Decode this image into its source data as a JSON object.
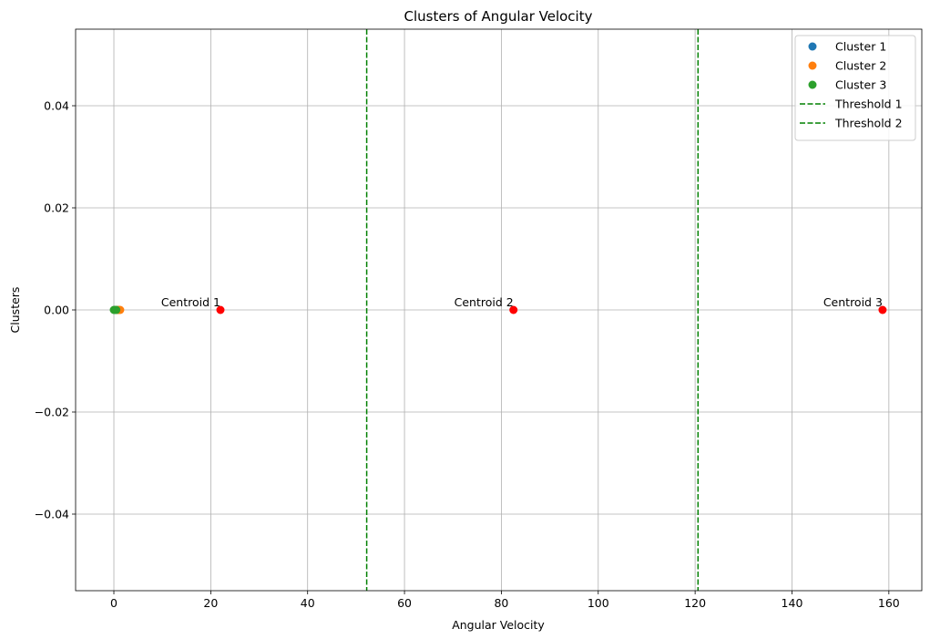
{
  "chart_data": {
    "type": "scatter",
    "title": "Clusters of Angular Velocity",
    "xlabel": "Angular Velocity",
    "ylabel": "Clusters",
    "xlim": [
      -7.9,
      166.8
    ],
    "ylim": [
      -0.055,
      0.055
    ],
    "xticks": [
      0,
      20,
      40,
      60,
      80,
      100,
      120,
      140,
      160
    ],
    "xtick_labels": [
      "0",
      "20",
      "40",
      "60",
      "80",
      "100",
      "120",
      "140",
      "160"
    ],
    "yticks": [
      -0.04,
      -0.02,
      0.0,
      0.02,
      0.04
    ],
    "ytick_labels": [
      "−0.04",
      "−0.02",
      "0.00",
      "0.02",
      "0.04"
    ],
    "grid": true,
    "legend_position": "top-right",
    "series": [
      {
        "name": "Cluster 1",
        "color": "#1f77b4",
        "x": [
          0.2,
          0.5,
          0.8
        ],
        "y": [
          0,
          0,
          0
        ]
      },
      {
        "name": "Cluster 2",
        "color": "#ff7f0e",
        "x": [
          0.6,
          1.0,
          1.3
        ],
        "y": [
          0,
          0,
          0
        ]
      },
      {
        "name": "Cluster 3",
        "color": "#2ca02c",
        "x": [
          0.0,
          0.3,
          0.5
        ],
        "y": [
          0,
          0,
          0
        ]
      }
    ],
    "thresholds": [
      {
        "name": "Threshold 1",
        "x": 52.2,
        "color": "#008000",
        "style": "dashed"
      },
      {
        "name": "Threshold 2",
        "x": 120.6,
        "color": "#008000",
        "style": "dashed"
      }
    ],
    "centroids": [
      {
        "label": "Centroid 1",
        "x": 22.0,
        "y": 0
      },
      {
        "label": "Centroid 2",
        "x": 82.5,
        "y": 0
      },
      {
        "label": "Centroid 3",
        "x": 158.7,
        "y": 0
      }
    ],
    "centroid_color": "#ff0000"
  }
}
